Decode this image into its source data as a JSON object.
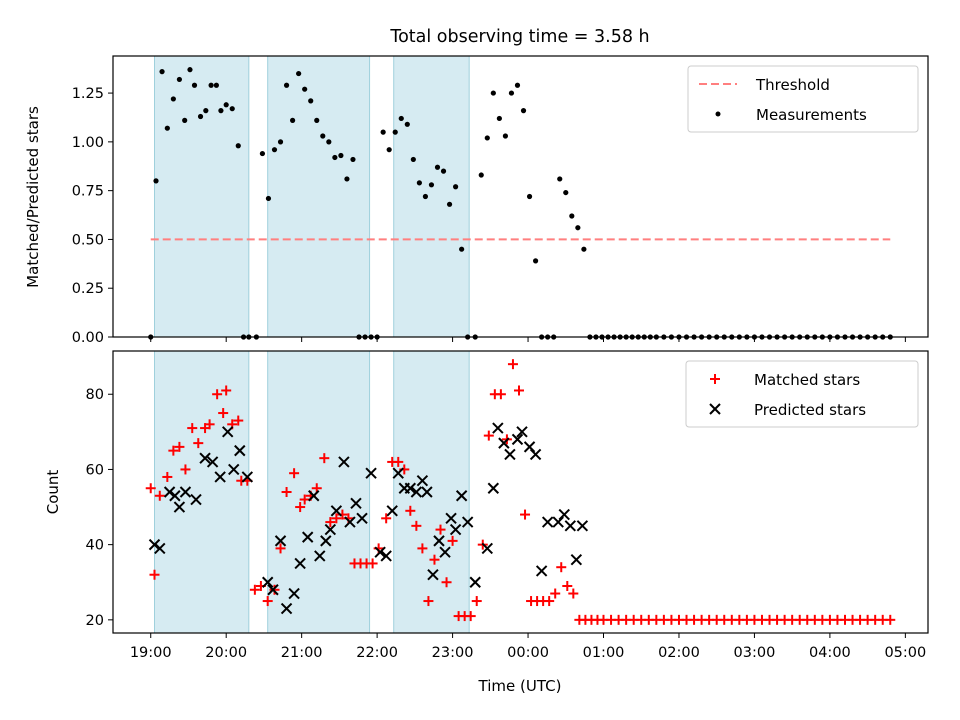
{
  "chart_data": {
    "type": "scatter",
    "title": "Total observing time = 3.58 h",
    "x_axis": {
      "label": "Time (UTC)",
      "unit": "hours since 19:00 UTC",
      "range": [
        -0.5,
        10.3
      ],
      "ticks": [
        0,
        1,
        2,
        3,
        4,
        5,
        6,
        7,
        8,
        9,
        10
      ],
      "tick_labels": [
        "19:00",
        "20:00",
        "21:00",
        "22:00",
        "23:00",
        "00:00",
        "01:00",
        "02:00",
        "03:00",
        "04:00",
        "05:00"
      ]
    },
    "observing_windows": [
      [
        0.05,
        1.3
      ],
      [
        1.55,
        2.9
      ],
      [
        3.22,
        4.22
      ]
    ],
    "panels": [
      {
        "id": "ratio",
        "ylabel": "Matched/Predicted stars",
        "ylim": [
          0,
          1.44
        ],
        "yticks": [
          0,
          0.25,
          0.5,
          0.75,
          1.0,
          1.25
        ],
        "ytick_labels": [
          "0.00",
          "0.25",
          "0.50",
          "0.75",
          "1.00",
          "1.25"
        ],
        "legend_position": "upper right",
        "threshold": {
          "name": "Threshold",
          "value": 0.5,
          "x_range": [
            0,
            9.8
          ],
          "color": "#ff7f7f"
        },
        "measurements": {
          "name": "Measurements",
          "color": "#000000",
          "x": [
            0,
            0.07,
            0.15,
            0.22,
            0.3,
            0.38,
            0.45,
            0.52,
            0.58,
            0.66,
            0.73,
            0.8,
            0.87,
            0.93,
            1.0,
            1.08,
            1.16,
            1.23,
            1.3,
            1.4,
            1.48,
            1.56,
            1.64,
            1.72,
            1.8,
            1.88,
            1.96,
            2.04,
            2.12,
            2.2,
            2.28,
            2.36,
            2.44,
            2.52,
            2.6,
            2.68,
            2.76,
            2.84,
            2.92,
            3.0,
            3.08,
            3.16,
            3.24,
            3.32,
            3.4,
            3.48,
            3.56,
            3.64,
            3.72,
            3.8,
            3.88,
            3.96,
            4.04,
            4.12,
            4.2,
            4.3,
            4.38,
            4.46,
            4.54,
            4.62,
            4.7,
            4.78,
            4.86,
            4.94,
            5.02,
            5.1,
            5.18,
            5.26,
            5.34,
            5.42,
            5.5,
            5.58,
            5.66,
            5.74,
            5.82,
            5.9,
            5.98,
            6.06,
            6.14,
            6.22,
            6.3,
            6.38,
            6.46,
            6.54,
            6.62,
            6.7,
            6.8,
            6.9,
            7.0,
            7.1,
            7.2,
            7.3,
            7.4,
            7.5,
            7.6,
            7.7,
            7.8,
            7.9,
            8.0,
            8.1,
            8.2,
            8.3,
            8.4,
            8.5,
            8.6,
            8.7,
            8.8,
            8.9,
            9.0,
            9.1,
            9.2,
            9.3,
            9.4,
            9.5,
            9.6,
            9.7,
            9.8
          ],
          "y": [
            0,
            0.8,
            1.36,
            1.07,
            1.22,
            1.32,
            1.11,
            1.37,
            1.29,
            1.13,
            1.16,
            1.29,
            1.29,
            1.16,
            1.19,
            1.17,
            0.98,
            0,
            0,
            0,
            0.94,
            0.71,
            0.96,
            1.0,
            1.29,
            1.11,
            1.35,
            1.27,
            1.21,
            1.11,
            1.03,
            1.0,
            0.92,
            0.93,
            0.81,
            0.91,
            0,
            0,
            0,
            0,
            1.05,
            0.96,
            1.05,
            1.12,
            1.09,
            0.91,
            0.79,
            0.72,
            0.78,
            0.87,
            0.85,
            0.68,
            0.77,
            0.45,
            0,
            0,
            0.83,
            1.02,
            1.25,
            1.12,
            1.03,
            1.25,
            1.29,
            1.16,
            0.72,
            0.39,
            0,
            0,
            0,
            0.81,
            0.74,
            0.62,
            0.56,
            0.45,
            0,
            0,
            0,
            0,
            0,
            0,
            0,
            0,
            0,
            0,
            0,
            0,
            0,
            0,
            0,
            0,
            0,
            0,
            0,
            0,
            0,
            0,
            0,
            0,
            0,
            0,
            0,
            0,
            0,
            0,
            0,
            0,
            0,
            0,
            0,
            0,
            0,
            0,
            0,
            0,
            0,
            0,
            0
          ]
        }
      },
      {
        "id": "counts",
        "ylabel": "Count",
        "ylim": [
          16.5,
          91.5
        ],
        "yticks": [
          20,
          40,
          60,
          80
        ],
        "ytick_labels": [
          "20",
          "40",
          "60",
          "80"
        ],
        "legend_position": "upper right",
        "series": [
          {
            "name": "Matched stars",
            "marker": "+",
            "color": "#ff0000",
            "x": [
              0,
              0.05,
              0.12,
              0.22,
              0.3,
              0.38,
              0.46,
              0.55,
              0.63,
              0.72,
              0.78,
              0.88,
              0.96,
              1.0,
              1.08,
              1.16,
              1.2,
              1.28,
              1.38,
              1.46,
              1.55,
              1.64,
              1.72,
              1.8,
              1.9,
              1.98,
              2.04,
              2.12,
              2.2,
              2.3,
              2.38,
              2.46,
              2.54,
              2.62,
              2.7,
              2.78,
              2.86,
              2.94,
              3.02,
              3.12,
              3.2,
              3.28,
              3.36,
              3.44,
              3.52,
              3.6,
              3.68,
              3.76,
              3.84,
              3.92,
              4.0,
              4.08,
              4.16,
              4.24,
              4.32,
              4.4,
              4.48,
              4.56,
              4.64,
              4.72,
              4.8,
              4.88,
              4.96,
              5.04,
              5.12,
              5.2,
              5.28,
              5.36,
              5.44,
              5.52,
              5.6,
              5.68,
              5.76,
              5.84,
              5.92,
              6.0,
              6.1,
              6.2,
              6.3,
              6.4,
              6.5,
              6.6,
              6.7,
              6.8,
              6.9,
              7.0,
              7.1,
              7.2,
              7.3,
              7.4,
              7.5,
              7.6,
              7.7,
              7.8,
              7.9,
              8.0,
              8.1,
              8.2,
              8.3,
              8.4,
              8.5,
              8.6,
              8.7,
              8.8,
              8.9,
              9.0,
              9.1,
              9.2,
              9.3,
              9.4,
              9.5,
              9.6,
              9.7,
              9.8
            ],
            "y": [
              55,
              32,
              53,
              58,
              65,
              66,
              60,
              71,
              67,
              71,
              72,
              80,
              75,
              81,
              72,
              73,
              57,
              57,
              28,
              29,
              25,
              28,
              39,
              54,
              59,
              50,
              52,
              53,
              55,
              63,
              46,
              47,
              48,
              47,
              35,
              35,
              35,
              35,
              39,
              47,
              62,
              62,
              60,
              49,
              45,
              39,
              25,
              36,
              44,
              30,
              41,
              21,
              21,
              21,
              25,
              40,
              69,
              80,
              80,
              68,
              88,
              81,
              48,
              25,
              25,
              25,
              25,
              27,
              34,
              29,
              27,
              20,
              20,
              20,
              20,
              20,
              20,
              20,
              20,
              20,
              20,
              20,
              20,
              20,
              20,
              20,
              20,
              20,
              20,
              20,
              20,
              20,
              20,
              20,
              20,
              20,
              20,
              20,
              20,
              20,
              20,
              20,
              20,
              20,
              20,
              20,
              20,
              20,
              20,
              20,
              20,
              20,
              20,
              20
            ]
          },
          {
            "name": "Predicted stars",
            "marker": "x",
            "color": "#000000",
            "x": [
              0.05,
              0.12,
              0.25,
              0.32,
              0.38,
              0.46,
              0.6,
              0.72,
              0.82,
              0.92,
              1.02,
              1.1,
              1.18,
              1.28,
              1.55,
              1.62,
              1.72,
              1.8,
              1.9,
              1.98,
              2.08,
              2.16,
              2.24,
              2.32,
              2.38,
              2.46,
              2.56,
              2.64,
              2.72,
              2.8,
              2.92,
              3.04,
              3.12,
              3.2,
              3.28,
              3.36,
              3.44,
              3.52,
              3.6,
              3.66,
              3.74,
              3.82,
              3.9,
              3.98,
              4.04,
              4.12,
              4.2,
              4.3,
              4.46,
              4.54,
              4.6,
              4.68,
              4.76,
              4.86,
              4.92,
              5.02,
              5.1,
              5.18,
              5.26,
              5.4,
              5.48,
              5.56,
              5.64,
              5.72
            ],
            "y": [
              40,
              39,
              54,
              53,
              50,
              54,
              52,
              63,
              62,
              58,
              70,
              60,
              65,
              58,
              30,
              28,
              41,
              23,
              27,
              35,
              42,
              53,
              37,
              41,
              44,
              49,
              62,
              46,
              51,
              47,
              59,
              38,
              37,
              49,
              59,
              55,
              55,
              54,
              57,
              54,
              32,
              41,
              38,
              47,
              44,
              53,
              46,
              30,
              39,
              55,
              71,
              67,
              64,
              68,
              70,
              66,
              64,
              33,
              46,
              46,
              48,
              45,
              36,
              45
            ]
          }
        ]
      }
    ]
  }
}
